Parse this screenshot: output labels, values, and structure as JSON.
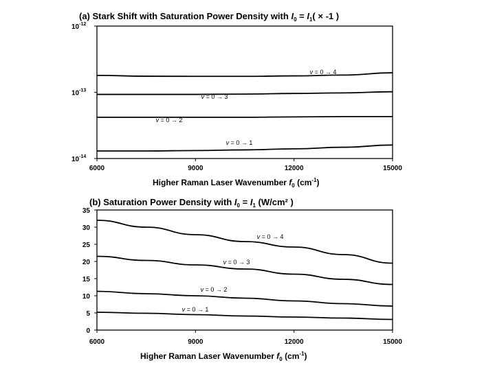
{
  "chart_data": [
    {
      "type": "line",
      "title": {
        "pre": "(a) Stark Shift with Saturation Power Density with ",
        "var": "I",
        "sub": "0",
        "mid": " = ",
        "var2": "I",
        "sub2": "1",
        "post": "( × -1 )"
      },
      "xlabel": {
        "pre": "Higher Raman Laser Wavenumber  ",
        "var": "f",
        "sub": "0",
        "post": " (cm",
        "sup": "-1",
        "end": ")"
      },
      "ylabel": "",
      "xlim": [
        6000,
        15000
      ],
      "ylim": [
        1e-14,
        1e-12
      ],
      "yscale": "log",
      "grid": false,
      "legend": "none",
      "x_ticks": [
        "6000",
        "9000",
        "12000",
        "15000"
      ],
      "y_ticks": [
        {
          "base": "10",
          "exp": "-12"
        },
        {
          "base": "10",
          "exp": "-13"
        },
        {
          "base": "10",
          "exp": "-14"
        }
      ],
      "x": [
        6000,
        7500,
        9000,
        10500,
        12000,
        13500,
        15000
      ],
      "series": [
        {
          "name": "v = 0 → 4",
          "values": [
            1.8e-13,
            1.75e-13,
            1.74e-13,
            1.74e-13,
            1.77e-13,
            1.82e-13,
            1.97e-13
          ]
        },
        {
          "name": "v = 0 → 3",
          "values": [
            9.3e-14,
            9.3e-14,
            9.3e-14,
            9.4e-14,
            9.6e-14,
            9.8e-14,
            1.02e-13
          ]
        },
        {
          "name": "v = 0 → 2",
          "values": [
            4.2e-14,
            4.2e-14,
            4.2e-14,
            4.2e-14,
            4.25e-14,
            4.3e-14,
            4.3e-14
          ]
        },
        {
          "name": "v = 0 → 1",
          "values": [
            1.3e-14,
            1.3e-14,
            1.32e-14,
            1.35e-14,
            1.4e-14,
            1.48e-14,
            1.6e-14
          ]
        }
      ]
    },
    {
      "type": "line",
      "title": {
        "pre": "(b) Saturation Power Density with ",
        "var": "I",
        "sub": "0",
        "mid": " = ",
        "var2": "I",
        "sub2": "1",
        "post": " (W/cm² )"
      },
      "xlabel": {
        "pre": "Higher Raman Laser Wavenumber  ",
        "var": "f",
        "sub": "0",
        "post": " (cm",
        "sup": "-1",
        "end": ")"
      },
      "ylabel": "",
      "xlim": [
        6000,
        15000
      ],
      "ylim": [
        0,
        35
      ],
      "yscale": "linear",
      "grid": false,
      "legend": "none",
      "x_ticks": [
        "6000",
        "9000",
        "12000",
        "15000"
      ],
      "y_ticks": [
        "0",
        "5",
        "10",
        "15",
        "20",
        "25",
        "30",
        "35"
      ],
      "x": [
        6000,
        7500,
        9000,
        10500,
        12000,
        13500,
        15000
      ],
      "series": [
        {
          "name": "v = 0 → 4",
          "values": [
            32,
            30,
            27.8,
            25.8,
            24.2,
            22,
            19.5
          ]
        },
        {
          "name": "v = 0 → 3",
          "values": [
            21.5,
            20.3,
            19,
            17.8,
            16.3,
            14.8,
            13.3
          ]
        },
        {
          "name": "v = 0 → 2",
          "values": [
            11.3,
            10.6,
            10,
            9.3,
            8.5,
            7.7,
            7
          ]
        },
        {
          "name": "v = 0 → 1",
          "values": [
            5.2,
            4.9,
            4.5,
            4.1,
            3.8,
            3.5,
            3.1
          ]
        }
      ]
    }
  ]
}
